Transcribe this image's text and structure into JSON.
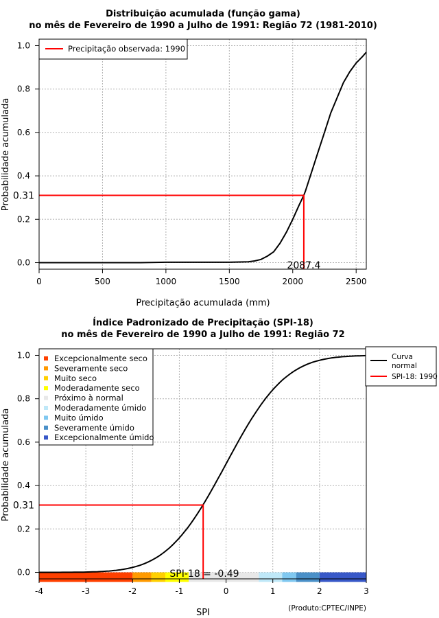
{
  "chart_data": [
    {
      "type": "line",
      "title_line1": "Distribuição acumulada (função gama)",
      "title_line2": "no mês de Fevereiro de 1990 a Julho de 1991: Região 72 (1981-2010)",
      "xlabel": "Precipitação acumulada (mm)",
      "ylabel": "Probabilidade acumulada",
      "xlim": [
        0,
        2580
      ],
      "ylim": [
        -0.03,
        1.03
      ],
      "xticks": [
        0,
        500,
        1000,
        1500,
        2000,
        2500
      ],
      "xtick_labels": [
        "0",
        "500",
        "1000",
        "1500",
        "2000",
        "2500"
      ],
      "yticks": [
        0.0,
        0.2,
        0.4,
        0.6,
        0.8,
        1.0
      ],
      "ytick_labels": [
        "0.0",
        "0.2",
        "0.4",
        "0.6",
        "0.8",
        "1.0"
      ],
      "grid": true,
      "legend": {
        "position": "top-left",
        "entries": [
          {
            "label": "Precipitação observada: 1990",
            "color": "#ff0000"
          }
        ]
      },
      "series": [
        {
          "name": "gamma-cdf",
          "color": "#000000",
          "x": [
            0,
            800,
            1000,
            1500,
            1650,
            1700,
            1750,
            1800,
            1850,
            1900,
            1950,
            2000,
            2050,
            2087.4,
            2100,
            2150,
            2200,
            2250,
            2300,
            2350,
            2400,
            2450,
            2500,
            2550,
            2580
          ],
          "y": [
            0.0,
            0.0,
            0.002,
            0.002,
            0.004,
            0.008,
            0.015,
            0.03,
            0.05,
            0.09,
            0.14,
            0.2,
            0.265,
            0.31,
            0.33,
            0.42,
            0.51,
            0.6,
            0.69,
            0.76,
            0.83,
            0.88,
            0.92,
            0.95,
            0.97
          ]
        }
      ],
      "observed": {
        "x": 2087.4,
        "y": 0.31,
        "x_label": "2087.4",
        "y_label": "0.31",
        "color": "#ff0000"
      }
    },
    {
      "type": "line",
      "title_line1": "Índice Padronizado de Precipitação (SPI-18)",
      "title_line2": "no mês de Fevereiro de 1990 a Julho de 1991: Região 72",
      "xlabel": "SPI",
      "ylabel": "Probabilidade acumulada",
      "xlim": [
        -4,
        3
      ],
      "ylim": [
        -0.03,
        1.03
      ],
      "xticks": [
        -4,
        -3,
        -2,
        -1,
        0,
        1,
        2,
        3
      ],
      "xtick_labels": [
        "-4",
        "-3",
        "-2",
        "-1",
        "0",
        "1",
        "2",
        "3"
      ],
      "yticks": [
        0.0,
        0.2,
        0.4,
        0.6,
        0.8,
        1.0
      ],
      "ytick_labels": [
        "0.0",
        "0.2",
        "0.4",
        "0.6",
        "0.8",
        "1.0"
      ],
      "grid": true,
      "legend_left": {
        "position": "top-left",
        "entries": [
          {
            "label": "Excepcionalmente seco",
            "color": "#ff4000"
          },
          {
            "label": "Severamente seco",
            "color": "#ff9a00"
          },
          {
            "label": "Muito seco",
            "color": "#ffd000"
          },
          {
            "label": "Moderadamente seco",
            "color": "#ffff00"
          },
          {
            "label": "Próximo à normal",
            "color": "#e8e8e8"
          },
          {
            "label": "Moderadamente úmido",
            "color": "#bfe8f8"
          },
          {
            "label": "Muito úmido",
            "color": "#80c8f0"
          },
          {
            "label": "Severamente úmido",
            "color": "#4a90c8"
          },
          {
            "label": "Excepcionalmente úmido",
            "color": "#3858c8"
          }
        ]
      },
      "legend_right": {
        "position": "top-right",
        "entries": [
          {
            "label_line1": "Curva",
            "label_line2": "normal",
            "color": "#000000"
          },
          {
            "label_line1": "SPI-18: 1990",
            "label_line2": "",
            "color": "#ff0000"
          }
        ]
      },
      "bands": [
        {
          "from": -4,
          "to": -2,
          "color": "#ff4000"
        },
        {
          "from": -2,
          "to": -1.6,
          "color": "#ff9a00"
        },
        {
          "from": -1.6,
          "to": -1.3,
          "color": "#ffd000"
        },
        {
          "from": -1.3,
          "to": -0.8,
          "color": "#ffff00"
        },
        {
          "from": -0.8,
          "to": 0.7,
          "color": "#e8e8e8"
        },
        {
          "from": 0.7,
          "to": 1.2,
          "color": "#bfe8f8"
        },
        {
          "from": 1.2,
          "to": 1.5,
          "color": "#80c8f0"
        },
        {
          "from": 1.5,
          "to": 2.0,
          "color": "#4a90c8"
        },
        {
          "from": 2.0,
          "to": 3.0,
          "color": "#3858c8"
        }
      ],
      "series": [
        {
          "name": "normal-cdf",
          "color": "#000000",
          "from": -4,
          "to": 3,
          "mean": 0,
          "sd": 1
        }
      ],
      "observed": {
        "x": -0.49,
        "y": 0.31,
        "y_label": "0.31",
        "annotation": "SPI-18 = -0.49",
        "color": "#ff0000"
      },
      "footer": "(Produto:CPTEC/INPE)"
    }
  ]
}
